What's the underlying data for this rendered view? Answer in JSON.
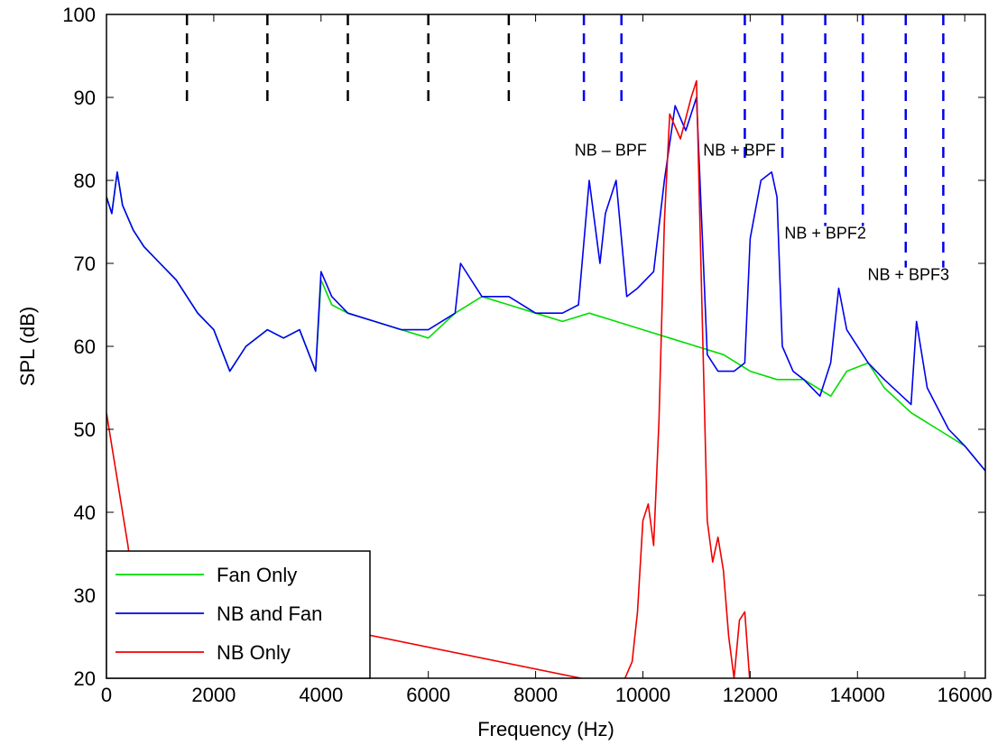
{
  "chart_data": {
    "type": "line",
    "title": "",
    "xlabel": "Frequency (Hz)",
    "ylabel": "SPL (dB)",
    "xlim": [
      0,
      16384
    ],
    "ylim": [
      20,
      100
    ],
    "xticks": [
      0,
      2000,
      4000,
      6000,
      8000,
      10000,
      12000,
      14000,
      16000
    ],
    "yticks": [
      20,
      30,
      40,
      50,
      60,
      70,
      80,
      90,
      100
    ],
    "grid": false,
    "legend": {
      "position": "bottom-left",
      "entries": [
        "Fan Only",
        "NB and Fan",
        "NB Only"
      ]
    },
    "colors": {
      "Fan Only": "#00dd00",
      "NB and Fan": "#0000ee",
      "NB Only": "#ee0000"
    },
    "series": [
      {
        "name": "Fan Only",
        "x": [
          0,
          100,
          200,
          300,
          500,
          700,
          1000,
          1300,
          1500,
          1700,
          2000,
          2300,
          2600,
          3000,
          3300,
          3600,
          3900,
          4000,
          4200,
          4500,
          5000,
          5500,
          6000,
          6500,
          7000,
          7500,
          8000,
          8500,
          9000,
          9500,
          10000,
          10500,
          11000,
          11500,
          12000,
          12500,
          13000,
          13500,
          13800,
          14200,
          14500,
          15000,
          15500,
          16000,
          16384
        ],
        "y": [
          78,
          76,
          81,
          77,
          74,
          72,
          70,
          68,
          66,
          64,
          62,
          57,
          60,
          62,
          61,
          62,
          57,
          68,
          65,
          64,
          63,
          62,
          61,
          64,
          66,
          65,
          64,
          63,
          64,
          63,
          62,
          61,
          60,
          59,
          57,
          56,
          56,
          54,
          57,
          58,
          55,
          52,
          50,
          48,
          45
        ]
      },
      {
        "name": "NB and Fan",
        "x": [
          0,
          100,
          200,
          300,
          500,
          700,
          1000,
          1300,
          1500,
          1700,
          2000,
          2300,
          2600,
          3000,
          3300,
          3600,
          3900,
          4000,
          4200,
          4500,
          5000,
          5500,
          6000,
          6500,
          6600,
          7000,
          7500,
          8000,
          8500,
          8800,
          9000,
          9200,
          9300,
          9500,
          9700,
          9900,
          10200,
          10400,
          10600,
          10800,
          11000,
          11200,
          11400,
          11700,
          11900,
          12000,
          12200,
          12400,
          12500,
          12600,
          12800,
          13000,
          13300,
          13500,
          13650,
          13800,
          14200,
          14500,
          15000,
          15100,
          15300,
          15700,
          16000,
          16384
        ],
        "y": [
          78,
          76,
          81,
          77,
          74,
          72,
          70,
          68,
          66,
          64,
          62,
          57,
          60,
          62,
          61,
          62,
          57,
          69,
          66,
          64,
          63,
          62,
          62,
          64,
          70,
          66,
          66,
          64,
          64,
          65,
          80,
          70,
          76,
          80,
          66,
          67,
          69,
          80,
          89,
          86,
          90,
          59,
          57,
          57,
          58,
          73,
          80,
          81,
          78,
          60,
          57,
          56,
          54,
          58,
          67,
          62,
          58,
          56,
          53,
          63,
          55,
          50,
          48,
          45
        ]
      },
      {
        "name": "NB Only",
        "x": [
          0,
          100,
          200,
          300,
          400,
          500,
          9600,
          9800,
          9900,
          10000,
          10100,
          10200,
          10300,
          10400,
          10500,
          10700,
          10900,
          11000,
          11100,
          11200,
          11300,
          11400,
          11500,
          11600,
          11700,
          11800,
          11900,
          12000
        ],
        "y": [
          52,
          48,
          44,
          40,
          36,
          31,
          19,
          22,
          28,
          39,
          41,
          36,
          51,
          75,
          88,
          85,
          90,
          92,
          65,
          39,
          34,
          37,
          33,
          25,
          20,
          27,
          28,
          19
        ]
      }
    ],
    "reference_lines": [
      {
        "label": "",
        "style": "black-dashed",
        "x": [
          1500,
          3000,
          4500,
          6000,
          7500
        ]
      },
      {
        "label": "NB – BPF",
        "style": "blue-dashed",
        "x": [
          8900,
          9600
        ]
      },
      {
        "label": "NB + BPF",
        "style": "blue-dashed",
        "x": [
          11900,
          12600
        ]
      },
      {
        "label": "NB + BPF2",
        "style": "blue-dashed",
        "x": [
          13400,
          14100
        ]
      },
      {
        "label": "NB + BPF3",
        "style": "blue-dashed",
        "x": [
          14900,
          15600
        ]
      }
    ],
    "annotations": [
      {
        "text": "NB – BPF",
        "at": [
          9400,
          83
        ]
      },
      {
        "text": "NB + BPF",
        "at": [
          11800,
          83
        ]
      },
      {
        "text": "NB + BPF2",
        "at": [
          13400,
          73
        ]
      },
      {
        "text": "NB + BPF3",
        "at": [
          14950,
          68
        ]
      }
    ]
  }
}
